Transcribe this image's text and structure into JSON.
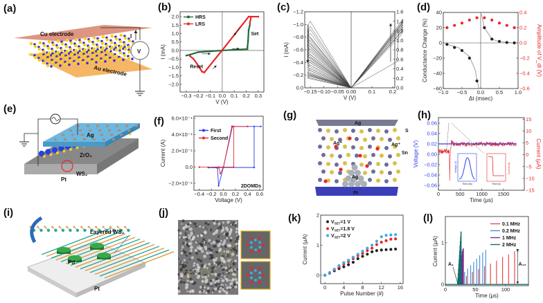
{
  "panel_labels": [
    "(a)",
    "(b)",
    "(c)",
    "(d)",
    "(e)",
    "(f)",
    "(g)",
    "(h)",
    "(i)",
    "(j)",
    "(k)",
    "(l)"
  ],
  "schematics": {
    "a": {
      "cu": "Cu electrode",
      "au": "Au electrode",
      "i": "I",
      "v": "V"
    },
    "e": {
      "ag": "Ag",
      "zro2": "ZrO₂",
      "ws2": "WS₂",
      "pt": "Pt"
    },
    "g": {
      "ag_top": "Ag",
      "s": "S",
      "ag_ion_left": "Ag⁺",
      "ag_ion_right": "Ag⁺",
      "sn": "Sn",
      "ag_filament": "Ag",
      "pt": "Pt"
    },
    "h_insets": {
      "left_ylabel": "Voltage (V)",
      "left_xlabel": "Time (ns)",
      "right_ylabel": "Current (A)",
      "right_xlabel": "Time (s)"
    },
    "i": {
      "ws2": "Layered WS₂",
      "pd": "Pd",
      "pt": "Pt"
    }
  },
  "colors": {
    "green": "#1f6b3a",
    "red": "#e8262b",
    "blue": "#2a3fe8",
    "lightblue": "#3fa9e6",
    "purple": "#7b2d8e",
    "teal": "#11706b",
    "black": "#222222"
  },
  "chart_data": [
    {
      "id": "b",
      "type": "line",
      "xlabel": "V (V)",
      "ylabel": "I (mA)",
      "xlim": [
        -0.352,
        0.347
      ],
      "ylim": [
        -2.46,
        2.29
      ],
      "xticks": [
        -0.3,
        -0.2,
        -0.1,
        0.0,
        0.1,
        0.2,
        0.3
      ],
      "xtick_labels": [
        "−0.3",
        "−0.2",
        "−0.1",
        "0.0",
        "0.1",
        "0.2",
        "0.3"
      ],
      "yticks": [
        2,
        1.5,
        1,
        0.5,
        0,
        -0.5,
        -1,
        -1.5,
        -2
      ],
      "ytick_labels": [
        "2.0",
        "1.5",
        "1.0",
        "0.5",
        "0.0",
        "−0.5",
        "−1.0",
        "−1.5",
        "−2.0"
      ],
      "legend": "top-left",
      "annotations": [
        "Set",
        "Reset"
      ],
      "series": [
        {
          "name": "HRS",
          "color": "#1f6b3a",
          "points": [
            [
              -0.3,
              -0.3
            ],
            [
              -0.27,
              -0.25
            ],
            [
              -0.2,
              -0.1
            ],
            [
              -0.1,
              -0.05
            ],
            [
              0,
              0
            ],
            [
              0.1,
              0.04
            ],
            [
              0.21,
              0.08
            ],
            [
              0.21,
              0.2
            ],
            [
              0.215,
              0.55
            ],
            [
              0.22,
              1.2
            ],
            [
              0.23,
              1.5
            ]
          ]
        },
        {
          "name": "LRS",
          "color": "#e8262b",
          "points": [
            [
              0.23,
              1.6
            ],
            [
              0.24,
              2.0
            ],
            [
              0.3,
              2.0
            ],
            [
              0.22,
              2.0
            ],
            [
              0,
              0.02
            ],
            [
              -0.15,
              -1.3
            ],
            [
              -0.17,
              -1.25
            ],
            [
              -0.2,
              -0.9
            ],
            [
              -0.24,
              -0.5
            ],
            [
              -0.27,
              -0.33
            ]
          ]
        }
      ]
    },
    {
      "id": "c",
      "type": "line",
      "xlabel": "V (V)",
      "ylabel": "I (mA)",
      "xlim": [
        -0.17,
        0.21
      ],
      "ylim": [
        0,
        -1.2
      ],
      "y2lim": [
        0,
        1.6
      ],
      "xticks": [
        -0.15,
        -0.1,
        -0.05,
        0,
        0.1,
        0.2
      ],
      "xtick_labels": [
        "−0.15",
        "−0.10",
        "−0.05",
        "0.00",
        "0.1",
        "0.2"
      ],
      "yticks": [
        -1.2,
        -1.0,
        -0.8,
        -0.6,
        -0.4,
        -0.2,
        0
      ],
      "ytick_labels": [
        "−1.2",
        "−1.0",
        "−0.8",
        "−0.6",
        "−0.4",
        "−0.2",
        "0.0"
      ],
      "y2ticks": [
        1.6,
        1.4,
        1.2,
        1.0,
        0.8,
        0.6,
        0.4,
        0.2,
        0
      ],
      "y2tick_labels": [
        "1.6",
        "1.4",
        "1.2",
        "1.0",
        "0.8",
        "0.6",
        "0.4",
        "0.2",
        "0.0"
      ],
      "negative_sweep_peaks_mA": [
        -1.05,
        -0.97,
        -0.92,
        -0.86,
        -0.8,
        -0.76,
        -0.7,
        -0.66,
        -0.62,
        -0.57,
        -0.53,
        -0.48,
        -0.44,
        -0.4,
        -0.36,
        -0.3,
        -0.27,
        -0.24,
        -0.21,
        -0.19
      ],
      "positive_sweep_peaks_mA": [
        1.45,
        1.42,
        1.38,
        1.33,
        1.28,
        1.2
      ]
    },
    {
      "id": "d",
      "type": "scatter",
      "xlabel": "Δt (msec)",
      "ylabel": "Conductance Change (%)",
      "y2label": "Amplitude of V_dt (V)",
      "xlim": [
        -1,
        1
      ],
      "ylim": [
        -60,
        40
      ],
      "y2lim": [
        -0.6,
        0.4
      ],
      "xticks": [
        -1,
        -0.5,
        0,
        0.5,
        1
      ],
      "xtick_labels": [
        "−1.0",
        "−0.5",
        "0.0",
        "0.5",
        "1.0"
      ],
      "yticks": [
        40,
        20,
        0,
        -20,
        -40,
        -60
      ],
      "ytick_labels": [
        "40",
        "20",
        "0",
        "−20",
        "−40",
        "−60"
      ],
      "y2ticks": [
        0.4,
        0.2,
        0,
        -0.2,
        -0.4,
        -0.6
      ],
      "y2tick_labels": [
        "0.4",
        "0.2",
        "0.0",
        "−0.2",
        "−0.4",
        "−0.6"
      ],
      "x": [
        -0.9,
        -0.7,
        -0.5,
        -0.3,
        -0.1,
        0.1,
        0.3,
        0.5,
        0.7,
        0.9
      ],
      "series": [
        {
          "name": "Conductance change",
          "axis": "left",
          "color": "#222222",
          "values": [
            -2,
            -6,
            -10,
            -20,
            -50,
            20,
            5,
            2,
            0.5,
            0
          ]
        },
        {
          "name": "Amplitude",
          "axis": "right",
          "color": "#e8262b",
          "values": [
            0.2,
            0.23,
            0.26,
            0.3,
            0.33,
            0.33,
            0.3,
            0.26,
            0.23,
            0.2
          ]
        }
      ]
    },
    {
      "id": "f",
      "type": "line",
      "xlabel": "Voltage (V)",
      "ylabel": "Current (A)",
      "xlim": [
        -0.49,
        0.66
      ],
      "ylim": [
        -2.85,
        6.26
      ],
      "y_unit_scale": "1e-4",
      "xticks": [
        -0.4,
        -0.2,
        0,
        0.2,
        0.4,
        0.6
      ],
      "xtick_labels": [
        "−0.4",
        "−0.2",
        "0.0",
        "0.2",
        "0.4",
        "0.6"
      ],
      "yticks": [
        6,
        4,
        2,
        0,
        -2
      ],
      "ytick_labels": [
        "6.0×10⁻⁴",
        "4.0×10⁻⁴",
        "2.0×10⁻⁴",
        "0.0",
        "−2.0×10⁻⁴"
      ],
      "annotation": "2DOMDs",
      "legend": "top-left",
      "series": [
        {
          "name": "First",
          "color": "#2a3fe8",
          "points": [
            [
              -0.25,
              -0.05
            ],
            [
              0,
              -0.05
            ],
            [
              0.51,
              -0.05
            ],
            [
              0.51,
              5.0
            ],
            [
              0.62,
              5.0
            ],
            [
              0.15,
              5.0
            ],
            [
              0,
              0
            ],
            [
              -0.08,
              -2.3
            ],
            [
              -0.1,
              -0.1
            ],
            [
              -0.25,
              -0.05
            ]
          ]
        },
        {
          "name": "Second",
          "color": "#e8262b",
          "points": [
            [
              -0.4,
              0
            ],
            [
              0.17,
              0
            ],
            [
              0.17,
              5.0
            ],
            [
              0.4,
              5.0
            ],
            [
              0.14,
              5.0
            ],
            [
              0,
              0
            ],
            [
              -0.05,
              -0.8
            ],
            [
              -0.08,
              0
            ],
            [
              -0.4,
              0
            ]
          ]
        }
      ]
    },
    {
      "id": "h",
      "type": "line",
      "xlabel": "Time (μs)",
      "ylabel": "Voltage (V)",
      "y2label": "Current (μA)",
      "xlim": [
        0,
        1980
      ],
      "ylim": [
        -0.0693,
        0.0707
      ],
      "y2lim": [
        -15,
        15.7
      ],
      "xticks": [
        0,
        500,
        1000,
        1500
      ],
      "xtick_labels": [
        "0",
        "500",
        "1000",
        "1500"
      ],
      "yticks": [
        0.06,
        0.04,
        0.02,
        0,
        -0.02,
        -0.04,
        -0.06
      ],
      "ytick_labels": [
        "0.06",
        "0.04",
        "0.02",
        "0.00",
        "−0.02",
        "−0.04",
        "−0.06"
      ],
      "y2ticks": [
        15,
        10,
        5,
        0,
        -5,
        -10,
        -15
      ],
      "y2tick_labels": [
        "15",
        "10",
        "5",
        "0",
        "−5",
        "−10",
        "−15"
      ],
      "series": [
        {
          "name": "Voltage",
          "axis": "left",
          "color": "#2a3fe8",
          "points": [
            [
              0,
              0.02
            ],
            [
              1800,
              0.02
            ]
          ]
        },
        {
          "name": "Current",
          "axis": "right",
          "color": "#e8262b",
          "points": [
            [
              0,
              1.5
            ],
            [
              250,
              1.5
            ],
            [
              260,
              -12
            ],
            [
              270,
              0
            ],
            [
              300,
              5.5
            ],
            [
              350,
              4.5
            ],
            [
              1800,
              4.5
            ]
          ]
        }
      ]
    },
    {
      "id": "k",
      "type": "scatter",
      "xlabel": "Pulse Number (#)",
      "ylabel": "Current (μA)",
      "xlim": [
        -0.9,
        16.6
      ],
      "ylim": [
        -0.28,
        2.0
      ],
      "xticks": [
        0,
        4,
        8,
        12,
        16
      ],
      "xtick_labels": [
        "0",
        "4",
        "8",
        "12",
        "16"
      ],
      "yticks": [
        0,
        1,
        2
      ],
      "ytick_labels": [
        "0",
        "1",
        "2"
      ],
      "legend": "top-left",
      "x": [
        0,
        1,
        2,
        3,
        4,
        5,
        6,
        7,
        8,
        9,
        10,
        11,
        12,
        13,
        14,
        15
      ],
      "series": [
        {
          "name": "1 V",
          "legend": {
            "main": "V",
            "sub": "SET",
            "rest": "=1 V"
          },
          "color": "#222222",
          "values": [
            0,
            0.07,
            0.15,
            0.22,
            0.28,
            0.35,
            0.43,
            0.55,
            0.63,
            0.7,
            0.78,
            0.82,
            0.84,
            0.85,
            0.86,
            0.87
          ]
        },
        {
          "name": "1.8 V",
          "legend": {
            "main": "V",
            "sub": "SET",
            "rest": "=1.8 V"
          },
          "color": "#e8262b",
          "values": [
            0,
            0.08,
            0.18,
            0.27,
            0.37,
            0.45,
            0.55,
            0.65,
            0.73,
            0.82,
            0.9,
            1.02,
            1.1,
            1.15,
            1.2,
            1.21
          ]
        },
        {
          "name": "2 V",
          "legend": {
            "main": "V",
            "sub": "SET",
            "rest": "=2 V"
          },
          "color": "#3fa9e6",
          "values": [
            0,
            0.09,
            0.2,
            0.32,
            0.42,
            0.5,
            0.6,
            0.7,
            0.8,
            0.9,
            1.0,
            1.13,
            1.28,
            1.33,
            1.34,
            1.35
          ]
        }
      ]
    },
    {
      "id": "l",
      "type": "bar",
      "xlabel": "Time (μs)",
      "ylabel": "Current (μA)",
      "xlim": [
        0,
        138
      ],
      "ylim": [
        -0.03,
        1.63
      ],
      "xticks": [
        0,
        50,
        100
      ],
      "xtick_labels": [
        "0",
        "50",
        "100"
      ],
      "yticks": [
        0,
        1
      ],
      "ytick_labels": [
        "0",
        "1"
      ],
      "legend": "top-right",
      "annotations": [
        "A₁",
        "A₁₀"
      ],
      "series": [
        {
          "name": "0.1 MHz",
          "color": "#e84a4a",
          "x": [
            35,
            45,
            55,
            65,
            75,
            85,
            95,
            105,
            115
          ],
          "values": [
            0.2,
            0.3,
            0.37,
            0.44,
            0.5,
            0.57,
            0.66,
            0.72,
            0.8
          ]
        },
        {
          "name": "0.2 MHz",
          "color": "#4a90d9",
          "x": [
            32,
            37,
            42,
            47,
            52,
            57,
            62,
            67
          ],
          "values": [
            0.3,
            0.38,
            0.46,
            0.54,
            0.62,
            0.7,
            0.77,
            0.83
          ]
        },
        {
          "name": "1 MHz",
          "color": "#7b2d8e",
          "x": [
            26,
            27,
            28,
            29,
            30
          ],
          "values": [
            0.6,
            0.7,
            0.8,
            0.85,
            0.87
          ]
        },
        {
          "name": "2 MHz",
          "color": "#11706b",
          "x": [
            20.5,
            21,
            21.5,
            22,
            22.5,
            23,
            23.5,
            24,
            24.5,
            25,
            25.5,
            26
          ],
          "values": [
            0.05,
            0.16,
            0.27,
            0.38,
            0.49,
            0.6,
            0.71,
            0.82,
            0.93,
            1.04,
            1.15,
            1.27
          ]
        }
      ]
    }
  ]
}
